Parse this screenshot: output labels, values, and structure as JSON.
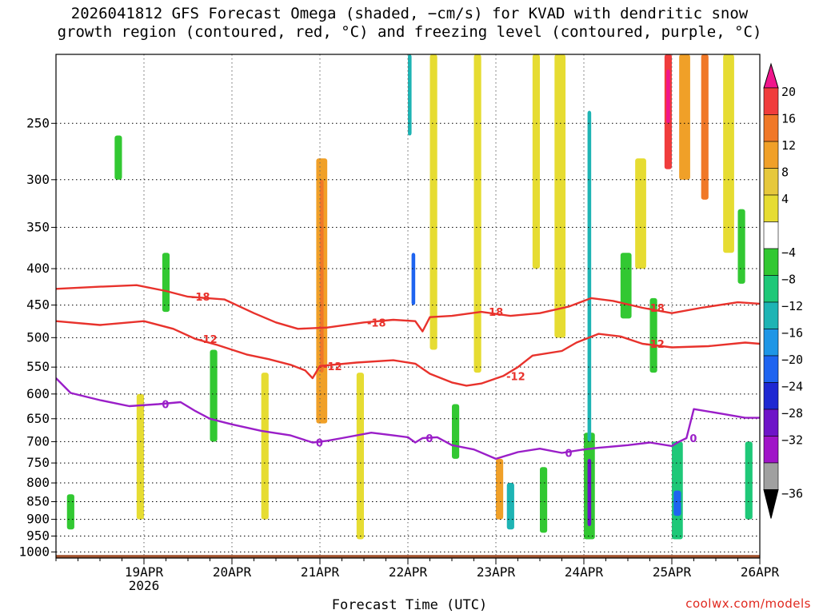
{
  "title_line1": "2026041812 GFS Forecast Omega (shaded, −cm/s) for KVAD with dendritic snow",
  "title_line2": "growth region (contoured, red, °C) and freezing level (contoured, purple, °C)",
  "credit": "coolwx.com/models",
  "chart_data": {
    "type": "heatmap",
    "title": "2026041812 GFS Forecast Omega (shaded, −cm/s) for KVAD with dendritic snow growth region (contoured, red, °C) and freezing level (contoured, purple, °C)",
    "xlabel": "Forecast Time (UTC)",
    "ylabel": "",
    "x_range_hours": [
      -12,
      180
    ],
    "x_ticks": [
      {
        "hour": 12,
        "label": "19APR",
        "sublabel": "2026"
      },
      {
        "hour": 36,
        "label": "20APR",
        "sublabel": ""
      },
      {
        "hour": 60,
        "label": "21APR",
        "sublabel": ""
      },
      {
        "hour": 84,
        "label": "22APR",
        "sublabel": ""
      },
      {
        "hour": 108,
        "label": "23APR",
        "sublabel": ""
      },
      {
        "hour": 132,
        "label": "24APR",
        "sublabel": ""
      },
      {
        "hour": 156,
        "label": "25APR",
        "sublabel": ""
      },
      {
        "hour": 180,
        "label": "26APR",
        "sublabel": ""
      }
    ],
    "y_axis": "pressure (hPa), log scale, inverted",
    "y_range_hpa": [
      200,
      1020
    ],
    "y_ticks": [
      250,
      300,
      350,
      400,
      450,
      500,
      550,
      600,
      650,
      700,
      750,
      800,
      850,
      900,
      950,
      1000
    ],
    "grid": true,
    "surface_pressure_hpa": 1010,
    "colorbar": {
      "ticks": [
        "20",
        "16",
        "12",
        "8",
        "4",
        "−4",
        "−8",
        "−12",
        "−16",
        "−20",
        "−24",
        "−28",
        "−32",
        "−36"
      ],
      "colors": [
        "#f0168c",
        "#f03c3c",
        "#f07828",
        "#f0a028",
        "#e6c83c",
        "#e6dc32",
        "#ffffff",
        "#32c832",
        "#1ec878",
        "#1eb4b4",
        "#1e96e6",
        "#1e64f0",
        "#1e28d2",
        "#6e14c8",
        "#a014c8",
        "#a0a0a0",
        "#000000"
      ]
    },
    "contours": [
      {
        "level": -18,
        "color": "#e8322c",
        "labels": [
          "-18",
          "-18",
          "-18",
          "-18"
        ],
        "points": [
          [
            -12,
            427
          ],
          [
            0,
            424
          ],
          [
            10,
            422
          ],
          [
            18,
            430
          ],
          [
            24,
            438
          ],
          [
            34,
            442
          ],
          [
            42,
            462
          ],
          [
            48,
            476
          ],
          [
            54,
            486
          ],
          [
            62,
            484
          ],
          [
            72,
            476
          ],
          [
            80,
            472
          ],
          [
            86,
            474
          ],
          [
            88,
            490
          ],
          [
            90,
            468
          ],
          [
            96,
            466
          ],
          [
            104,
            460
          ],
          [
            112,
            466
          ],
          [
            120,
            462
          ],
          [
            128,
            452
          ],
          [
            134,
            440
          ],
          [
            140,
            444
          ],
          [
            148,
            454
          ],
          [
            156,
            462
          ],
          [
            164,
            454
          ],
          [
            174,
            446
          ],
          [
            180,
            448
          ]
        ]
      },
      {
        "level": -12,
        "color": "#e8322c",
        "labels": [
          "-12",
          "-12",
          "-12",
          "-12"
        ],
        "points": [
          [
            -12,
            474
          ],
          [
            0,
            480
          ],
          [
            12,
            474
          ],
          [
            20,
            486
          ],
          [
            26,
            502
          ],
          [
            32,
            512
          ],
          [
            40,
            528
          ],
          [
            46,
            536
          ],
          [
            52,
            546
          ],
          [
            56,
            556
          ],
          [
            58,
            570
          ],
          [
            60,
            548
          ],
          [
            70,
            542
          ],
          [
            80,
            538
          ],
          [
            86,
            544
          ],
          [
            90,
            562
          ],
          [
            96,
            578
          ],
          [
            100,
            584
          ],
          [
            104,
            580
          ],
          [
            110,
            566
          ],
          [
            114,
            550
          ],
          [
            118,
            530
          ],
          [
            126,
            522
          ],
          [
            130,
            508
          ],
          [
            136,
            494
          ],
          [
            142,
            498
          ],
          [
            148,
            510
          ],
          [
            156,
            516
          ],
          [
            166,
            514
          ],
          [
            176,
            508
          ],
          [
            180,
            510
          ]
        ]
      },
      {
        "level": 0,
        "color": "#9a1ec8",
        "labels": [
          "0",
          "0",
          "0",
          "0",
          "0"
        ],
        "points": [
          [
            -12,
            570
          ],
          [
            -8,
            598
          ],
          [
            0,
            612
          ],
          [
            8,
            624
          ],
          [
            16,
            620
          ],
          [
            22,
            616
          ],
          [
            26,
            634
          ],
          [
            30,
            650
          ],
          [
            36,
            662
          ],
          [
            44,
            676
          ],
          [
            52,
            686
          ],
          [
            58,
            702
          ],
          [
            62,
            698
          ],
          [
            66,
            692
          ],
          [
            74,
            680
          ],
          [
            80,
            686
          ],
          [
            84,
            690
          ],
          [
            86,
            702
          ],
          [
            88,
            692
          ],
          [
            92,
            690
          ],
          [
            96,
            708
          ],
          [
            102,
            718
          ],
          [
            108,
            740
          ],
          [
            114,
            724
          ],
          [
            120,
            716
          ],
          [
            126,
            726
          ],
          [
            132,
            718
          ],
          [
            136,
            714
          ],
          [
            144,
            708
          ],
          [
            150,
            702
          ],
          [
            156,
            710
          ],
          [
            158,
            700
          ],
          [
            160,
            692
          ],
          [
            162,
            630
          ],
          [
            170,
            640
          ],
          [
            176,
            648
          ],
          [
            180,
            648
          ]
        ]
      }
    ],
    "omega_cells": [
      {
        "t0": 17,
        "t1": 19,
        "p0": 380,
        "p1": 460,
        "level": -8
      },
      {
        "t0": -9,
        "t1": -7,
        "p0": 830,
        "p1": 930,
        "level": -8
      },
      {
        "t0": 85,
        "t1": 86,
        "p0": 380,
        "p1": 450,
        "level": -20
      },
      {
        "t0": 84,
        "t1": 85,
        "p0": 200,
        "p1": 260,
        "level": -16
      },
      {
        "t0": 111,
        "t1": 113,
        "p0": 800,
        "p1": 930,
        "level": -16
      },
      {
        "t0": 132,
        "t1": 135,
        "p0": 680,
        "p1": 960,
        "level": -8
      },
      {
        "t0": 133,
        "t1": 134,
        "p0": 740,
        "p1": 920,
        "level": -28
      },
      {
        "t0": 133,
        "t1": 134,
        "p0": 240,
        "p1": 700,
        "level": -16
      },
      {
        "t0": 156,
        "t1": 159,
        "p0": 700,
        "p1": 960,
        "level": -12
      },
      {
        "t0": 156.5,
        "t1": 158.5,
        "p0": 820,
        "p1": 890,
        "level": -20
      },
      {
        "t0": 176,
        "t1": 178,
        "p0": 700,
        "p1": 900,
        "level": -12
      },
      {
        "t0": 154,
        "t1": 156,
        "p0": 200,
        "p1": 290,
        "level": 16
      },
      {
        "t0": 154.5,
        "t1": 155.5,
        "p0": 210,
        "p1": 250,
        "level": 20
      },
      {
        "t0": 158,
        "t1": 161,
        "p0": 200,
        "p1": 300,
        "level": 8
      },
      {
        "t0": 164,
        "t1": 166,
        "p0": 200,
        "p1": 320,
        "level": 12
      },
      {
        "t0": 59,
        "t1": 62,
        "p0": 280,
        "p1": 660,
        "level": 8
      },
      {
        "t0": 60,
        "t1": 61,
        "p0": 300,
        "p1": 560,
        "level": 12
      },
      {
        "t0": 108,
        "t1": 110,
        "p0": 740,
        "p1": 900,
        "level": 8
      },
      {
        "t0": 10,
        "t1": 12,
        "p0": 600,
        "p1": 900,
        "level": 4
      },
      {
        "t0": 44,
        "t1": 46,
        "p0": 560,
        "p1": 900,
        "level": 4
      },
      {
        "t0": 70,
        "t1": 72,
        "p0": 560,
        "p1": 960,
        "level": 4
      },
      {
        "t0": 90,
        "t1": 92,
        "p0": 200,
        "p1": 520,
        "level": 4
      },
      {
        "t0": 102,
        "t1": 104,
        "p0": 200,
        "p1": 560,
        "level": 4
      },
      {
        "t0": 118,
        "t1": 120,
        "p0": 200,
        "p1": 400,
        "level": 4
      },
      {
        "t0": 124,
        "t1": 127,
        "p0": 200,
        "p1": 500,
        "level": 4
      },
      {
        "t0": 146,
        "t1": 149,
        "p0": 280,
        "p1": 400,
        "level": 4
      },
      {
        "t0": 170,
        "t1": 173,
        "p0": 200,
        "p1": 380,
        "level": 4
      },
      {
        "t0": 30,
        "t1": 32,
        "p0": 520,
        "p1": 700,
        "level": -4
      },
      {
        "t0": 4,
        "t1": 6,
        "p0": 260,
        "p1": 300,
        "level": -4
      },
      {
        "t0": 96,
        "t1": 98,
        "p0": 620,
        "p1": 740,
        "level": -4
      },
      {
        "t0": 120,
        "t1": 122,
        "p0": 760,
        "p1": 940,
        "level": -4
      },
      {
        "t0": 142,
        "t1": 145,
        "p0": 380,
        "p1": 470,
        "level": -4
      },
      {
        "t0": 150,
        "t1": 152,
        "p0": 440,
        "p1": 560,
        "level": -4
      },
      {
        "t0": 174,
        "t1": 176,
        "p0": 330,
        "p1": 420,
        "level": -4
      }
    ]
  }
}
